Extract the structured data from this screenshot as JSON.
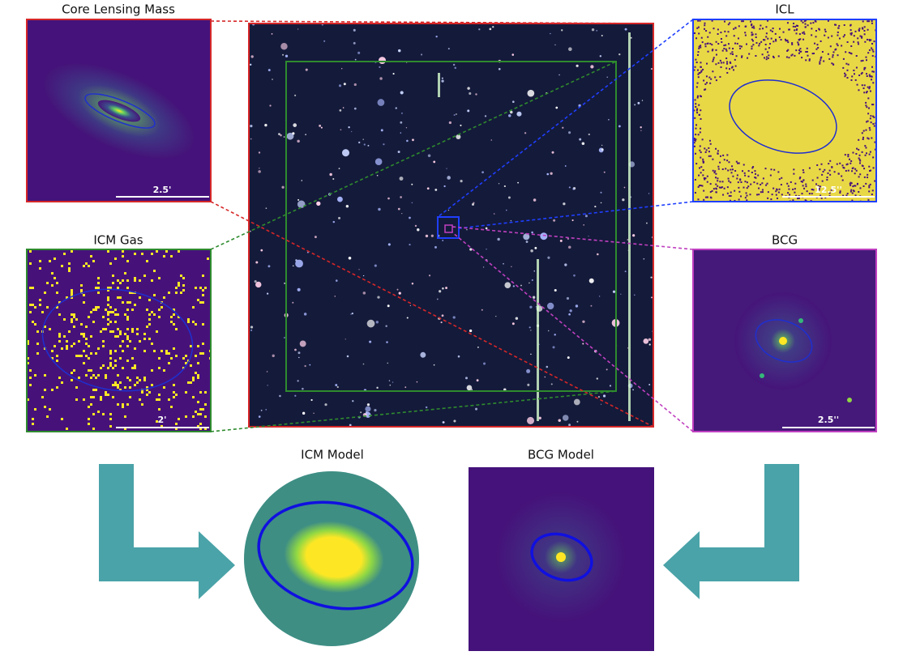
{
  "panels": [
    {
      "title": "Core Lensing Mass",
      "scale_label": "2.5'"
    },
    {
      "title": "ICL",
      "scale_label": "12.5''"
    },
    {
      "title": "ICM Gas",
      "scale_label": "2'"
    },
    {
      "title": "BCG",
      "scale_label": "2.5''"
    }
  ],
  "models": [
    {
      "title": "ICM Model"
    },
    {
      "title": "BCG Model"
    }
  ]
}
